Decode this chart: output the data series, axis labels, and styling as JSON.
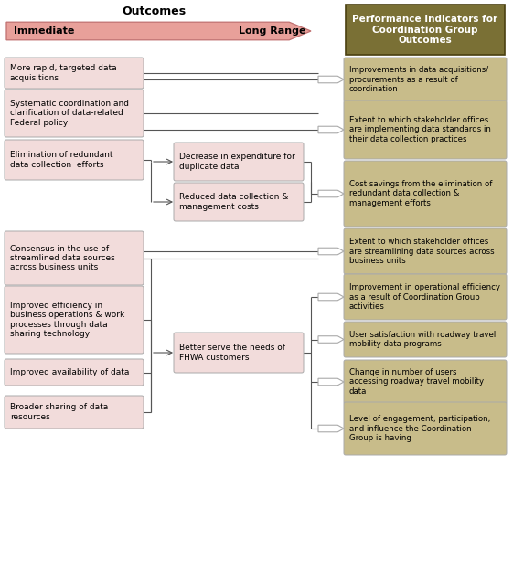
{
  "title_outcomes": "Outcomes",
  "arrow_label_immediate": "Immediate",
  "arrow_label_long_range": "Long Range",
  "header_right": "Performance Indicators for\nCoordination Group\nOutcomes",
  "arrow_color": "#E8A09A",
  "arrow_edge_color": "#C07070",
  "box_left_color": "#F2DCDB",
  "box_left_edge": "#AAAAAA",
  "box_mid_color": "#F2DCDB",
  "box_mid_edge": "#AAAAAA",
  "box_right_color": "#C8BC8A",
  "box_right_edge": "#AAAAAA",
  "header_right_bg": "#7A7035",
  "header_right_fg": "#FFFFFF",
  "left_boxes": [
    "More rapid, targeted data\nacquisitions",
    "Systematic coordination and\nclarification of data-related\nFederal policy",
    "Elimination of redundant\ndata collection  efforts",
    "Consensus in the use of\nstreamlined data sources\nacross business units",
    "Improved efficiency in\nbusiness operations & work\nprocesses through data\nsharing technology",
    "Improved availability of data",
    "Broader sharing of data\nresources"
  ],
  "mid_boxes": [
    "Decrease in expenditure for\nduplicate data",
    "Reduced data collection &\nmanagement costs",
    "Better serve the needs of\nFHWA customers"
  ],
  "right_boxes": [
    "Improvements in data acquisitions/\nprocurements as a result of\ncoordination",
    "Extent to which stakeholder offices\nare implementing data standards in\ntheir data collection practices",
    "Cost savings from the elimination of\nredundant data collection &\nmanagement efforts",
    "Extent to which stakeholder offices\nare streamlining data sources across\nbusiness units",
    "Improvement in operational efficiency\nas a result of Coordination Group\nactivities",
    "User satisfaction with roadway travel\nmobility data programs",
    "Change in number of users\naccessing roadway travel mobility\ndata",
    "Level of engagement, participation,\nand influence the Coordination\nGroup is having"
  ],
  "fig_w": 5.61,
  "fig_h": 6.14,
  "dpi": 100
}
